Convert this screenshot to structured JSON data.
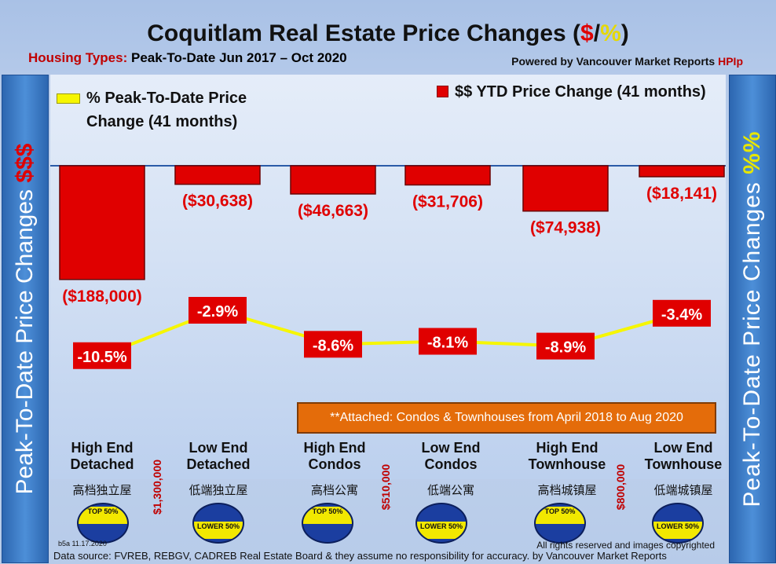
{
  "header": {
    "title_main": "Coquitlam Real Estate Price Changes (",
    "title_dollar": "$",
    "title_slash": "/",
    "title_pct": "%",
    "title_end": ")",
    "subtitle_label": "Housing Types:",
    "subtitle_text": "Peak-To-Date Jun 2017 – Oct 2020",
    "powered_text": "Powered by Vancouver Market Reports",
    "powered_brand": "HPIp"
  },
  "side": {
    "left_text": "Peak-To-Date Price Changes",
    "left_accent": "$$$",
    "right_text": "Peak-To-Date  Price  Changes",
    "right_accent": "%%"
  },
  "legend": {
    "pct_label": "% Peak-To-Date Price Change (41 months)",
    "dollar_label": "$$ YTD Price Change (41 months)"
  },
  "note": "**Attached: Condos & Townhouses from April 2018 to Aug 2020",
  "categories": [
    {
      "name": "High End Detached",
      "zh": "高档独立屋",
      "badge": "TOP 50%"
    },
    {
      "name": "Low End Detached",
      "zh": "低端独立屋",
      "badge": "LOWER 50%"
    },
    {
      "name": "High End Condos",
      "zh": "高档公寓",
      "badge": "TOP 50%"
    },
    {
      "name": "Low End Condos",
      "zh": "低端公寓",
      "badge": "LOWER 50%"
    },
    {
      "name": "High End Townhouse",
      "zh": "高档城镇屋",
      "badge": "TOP 50%"
    },
    {
      "name": "Low End Townhouse",
      "zh": "低端城镇屋",
      "badge": "LOWER 50%"
    }
  ],
  "thresholds": [
    "$1,300,000",
    "$510,000",
    "$800,000"
  ],
  "footer": {
    "code": "b5a 11.17.2020",
    "rights": "All rights reserved and  images copyrighted",
    "source": "Data source: FVREB, REBGV, CADREB Real Estate Board & they assume no responsibility for accuracy. by Vancouver Market Reports"
  },
  "chart_data": {
    "type": "bar",
    "categories": [
      "High End Detached",
      "Low End Detached",
      "High End Condos",
      "Low End Condos",
      "High End Townhouse",
      "Low End Townhouse"
    ],
    "series": [
      {
        "name": "$$ YTD Price Change (41 months)",
        "type": "bar",
        "values": [
          -188000,
          -30638,
          -46663,
          -31706,
          -74938,
          -18141
        ],
        "labels": [
          "($188,000)",
          "($30,638)",
          "($46,663)",
          "($31,706)",
          "($74,938)",
          "($18,141)"
        ]
      },
      {
        "name": "% Peak-To-Date Price Change (41 months)",
        "type": "line",
        "values": [
          -10.5,
          -2.9,
          -8.6,
          -8.1,
          -8.9,
          -3.4
        ],
        "labels": [
          "-10.5%",
          "-2.9%",
          "-8.6%",
          "-8.1%",
          "-8.9%",
          "-3.4%"
        ]
      }
    ],
    "colors": {
      "bar": "#e00000",
      "line": "#f6f600",
      "label_bg": "#e00000"
    },
    "grid": false
  }
}
